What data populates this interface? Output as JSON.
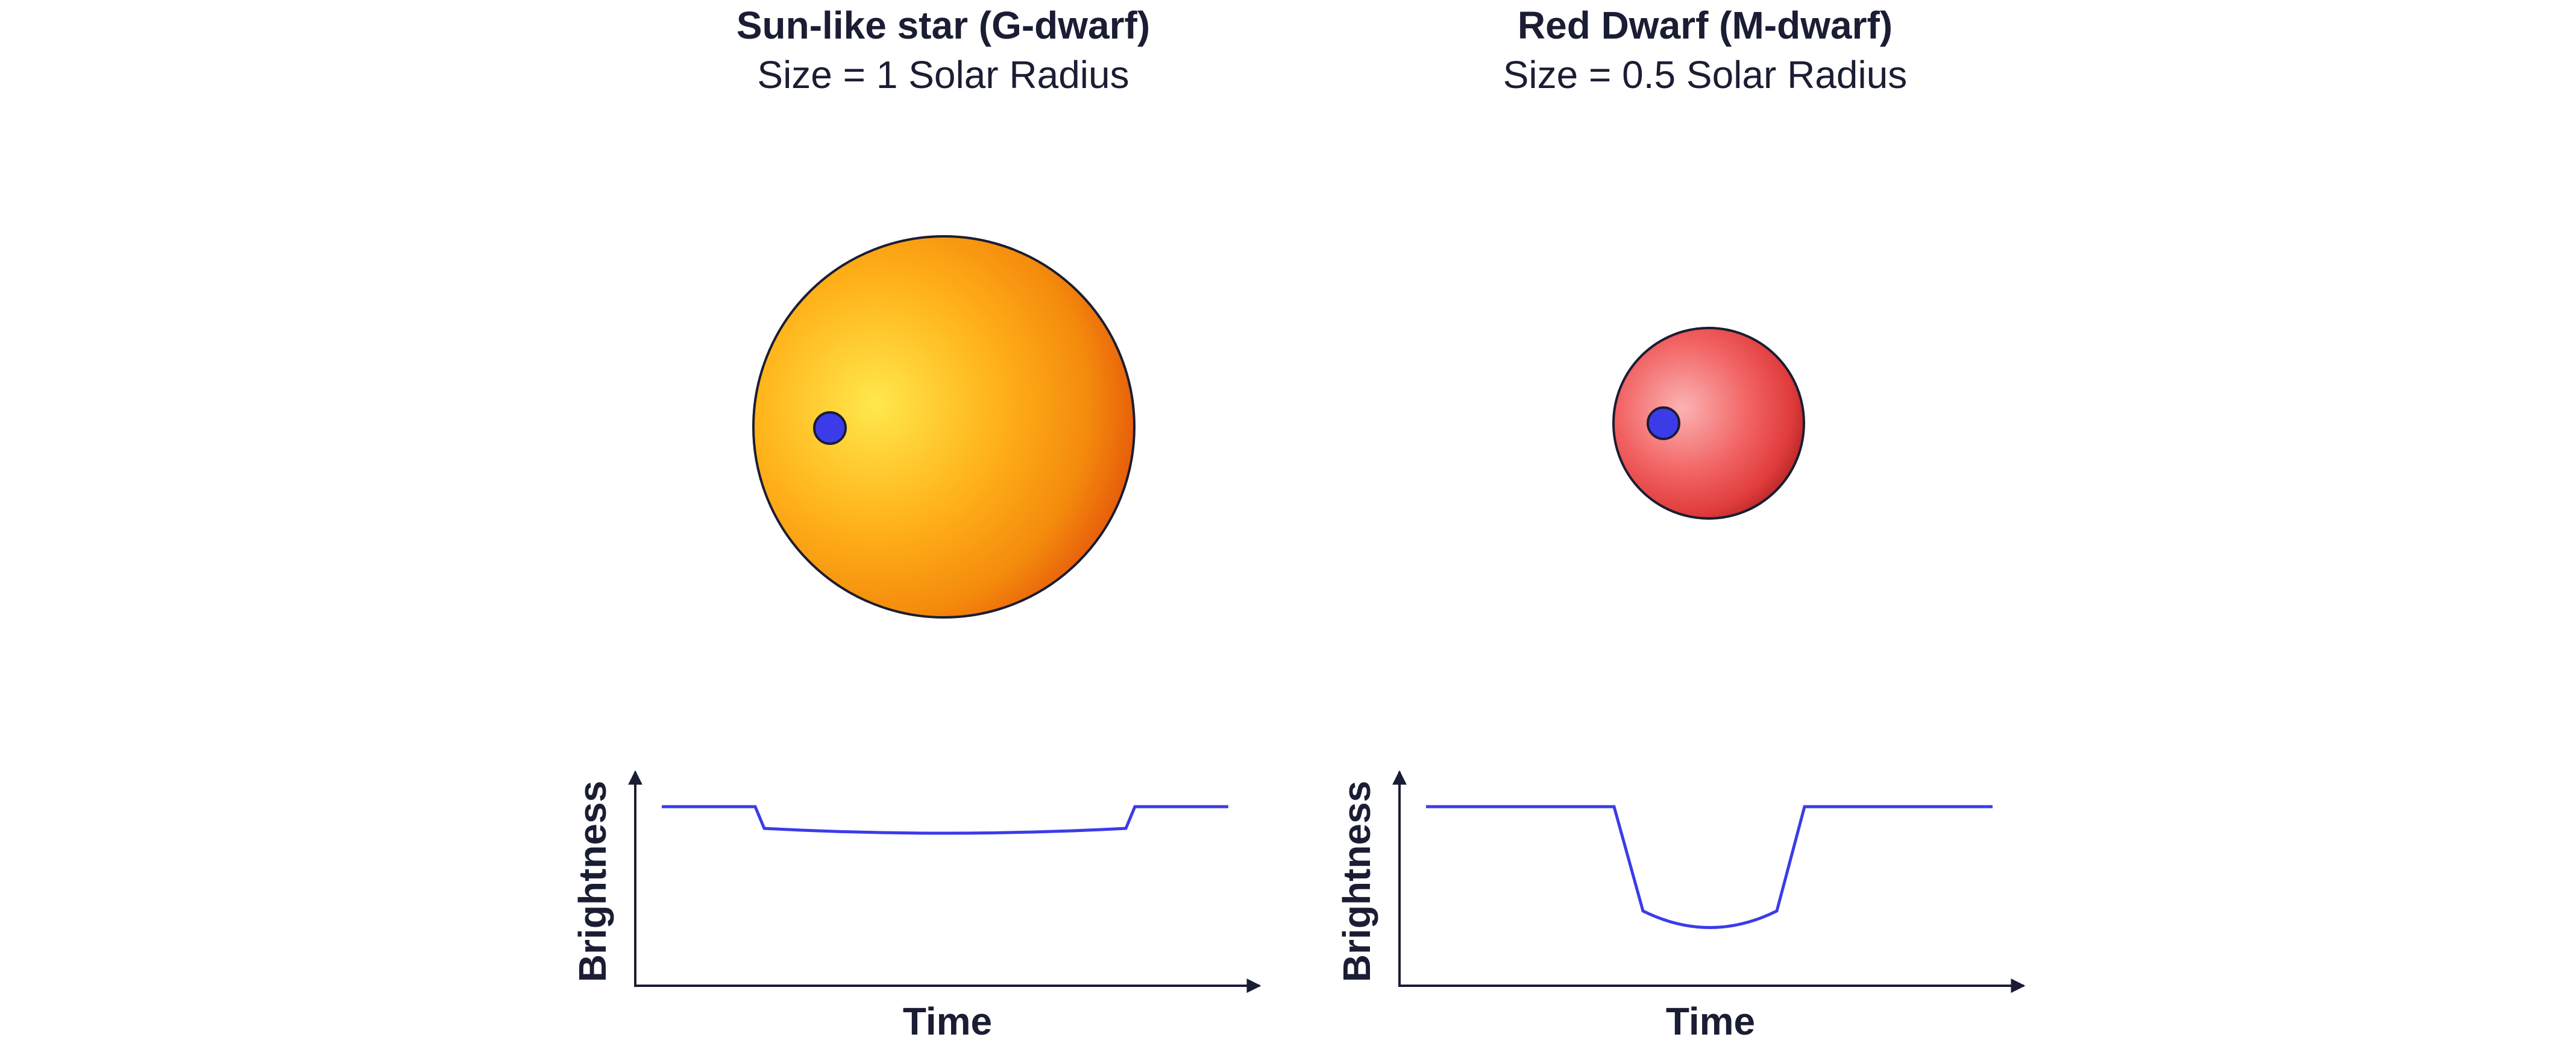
{
  "colors": {
    "text": "#1a1d33",
    "curve": "#3b3bea",
    "planet": "#3b3bea",
    "axis": "#1a1d33",
    "sun_light": "#ffe44a",
    "sun_dark": "#e4530a",
    "red_light": "#f9a3a3",
    "red_dark": "#a81c1c"
  },
  "panels": [
    {
      "title": "Sun-like star (G-dwarf)",
      "subtitle": "Size = 1 Solar Radius",
      "star_icon": "sun-like-star",
      "planet_icon": "transiting-planet",
      "star_radius_solar": 1,
      "x_axis_label": "Time",
      "y_axis_label": "Brightness"
    },
    {
      "title": "Red Dwarf (M-dwarf)",
      "subtitle": "Size = 0.5 Solar Radius",
      "star_icon": "red-dwarf-star",
      "planet_icon": "transiting-planet",
      "star_radius_solar": 0.5,
      "x_axis_label": "Time",
      "y_axis_label": "Brightness"
    }
  ]
}
